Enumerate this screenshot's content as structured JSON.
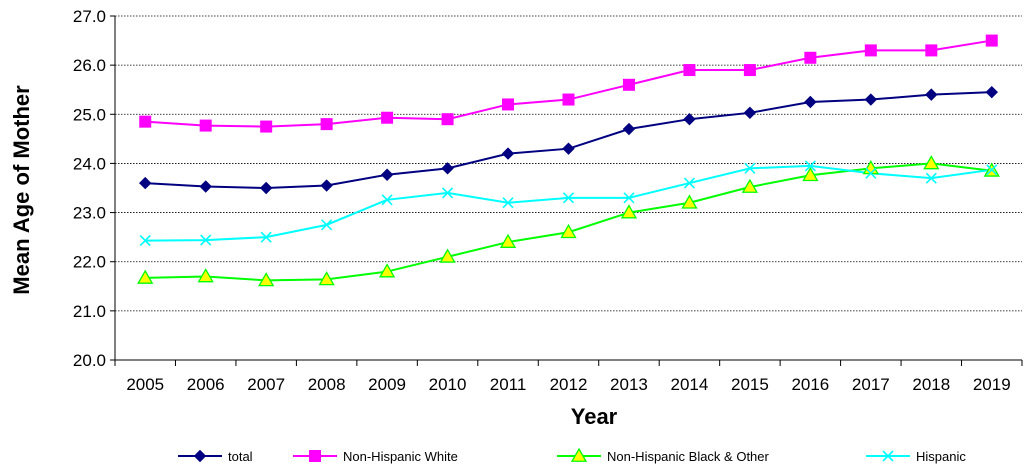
{
  "chart_data": {
    "type": "line",
    "title": "",
    "xlabel": "Year",
    "ylabel": "Mean Age of Mother",
    "ylim": [
      20.0,
      27.0
    ],
    "yticks": [
      "20.0",
      "21.0",
      "22.0",
      "23.0",
      "24.0",
      "25.0",
      "26.0",
      "27.0"
    ],
    "categories": [
      "2005",
      "2006",
      "2007",
      "2008",
      "2009",
      "2010",
      "2011",
      "2012",
      "2013",
      "2014",
      "2015",
      "2016",
      "2017",
      "2018",
      "2019"
    ],
    "grid": "horizontal",
    "legend_position": "bottom",
    "series": [
      {
        "name": "total",
        "color": "#000080",
        "marker": "diamond",
        "values": [
          23.6,
          23.53,
          23.5,
          23.55,
          23.77,
          23.9,
          24.2,
          24.3,
          24.7,
          24.9,
          25.03,
          25.25,
          25.3,
          25.4,
          25.45
        ]
      },
      {
        "name": "Non-Hispanic White",
        "color": "#ff00ff",
        "marker": "square",
        "values": [
          24.85,
          24.77,
          24.75,
          24.8,
          24.93,
          24.9,
          25.2,
          25.3,
          25.6,
          25.9,
          25.9,
          26.15,
          26.3,
          26.3,
          26.5
        ]
      },
      {
        "name": "Non-Hispanic Black & Other",
        "color": "#00ff00",
        "marker": "triangle",
        "marker_fill": "#ffff00",
        "values": [
          21.67,
          21.7,
          21.62,
          21.64,
          21.8,
          22.1,
          22.4,
          22.6,
          23.0,
          23.2,
          23.52,
          23.76,
          23.9,
          24.0,
          23.85
        ]
      },
      {
        "name": "Hispanic",
        "color": "#00ffff",
        "marker": "x",
        "values": [
          22.43,
          22.44,
          22.5,
          22.75,
          23.26,
          23.4,
          23.2,
          23.3,
          23.3,
          23.6,
          23.9,
          23.95,
          23.8,
          23.7,
          23.87
        ]
      }
    ]
  }
}
